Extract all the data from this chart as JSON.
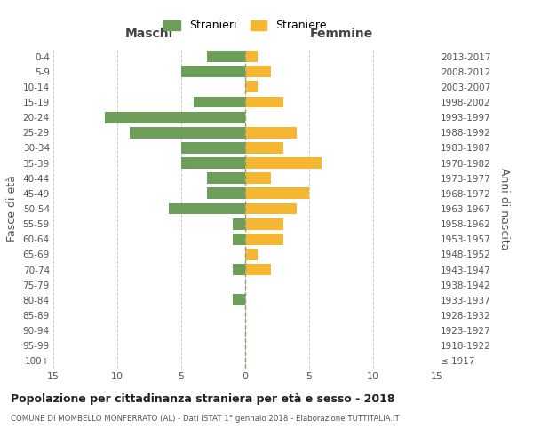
{
  "age_groups": [
    "100+",
    "95-99",
    "90-94",
    "85-89",
    "80-84",
    "75-79",
    "70-74",
    "65-69",
    "60-64",
    "55-59",
    "50-54",
    "45-49",
    "40-44",
    "35-39",
    "30-34",
    "25-29",
    "20-24",
    "15-19",
    "10-14",
    "5-9",
    "0-4"
  ],
  "birth_years": [
    "≤ 1917",
    "1918-1922",
    "1923-1927",
    "1928-1932",
    "1933-1937",
    "1938-1942",
    "1943-1947",
    "1948-1952",
    "1953-1957",
    "1958-1962",
    "1963-1967",
    "1968-1972",
    "1973-1977",
    "1978-1982",
    "1983-1987",
    "1988-1992",
    "1993-1997",
    "1998-2002",
    "2003-2007",
    "2008-2012",
    "2013-2017"
  ],
  "males": [
    0,
    0,
    0,
    0,
    1,
    0,
    1,
    0,
    1,
    1,
    6,
    3,
    3,
    5,
    5,
    9,
    11,
    4,
    0,
    5,
    3
  ],
  "females": [
    0,
    0,
    0,
    0,
    0,
    0,
    2,
    1,
    3,
    3,
    4,
    5,
    2,
    6,
    3,
    4,
    0,
    3,
    1,
    2,
    1
  ],
  "male_color": "#6d9e5a",
  "female_color": "#f5b731",
  "title": "Popolazione per cittadinanza straniera per età e sesso - 2018",
  "subtitle": "COMUNE DI MOMBELLO MONFERRATO (AL) - Dati ISTAT 1° gennaio 2018 - Elaborazione TUTTITALIA.IT",
  "xlabel_left": "Maschi",
  "xlabel_right": "Femmine",
  "ylabel_left": "Fasce di età",
  "ylabel_right": "Anni di nascita",
  "legend_male": "Stranieri",
  "legend_female": "Straniere",
  "xlim": 15,
  "background_color": "#ffffff",
  "grid_color": "#cccccc"
}
